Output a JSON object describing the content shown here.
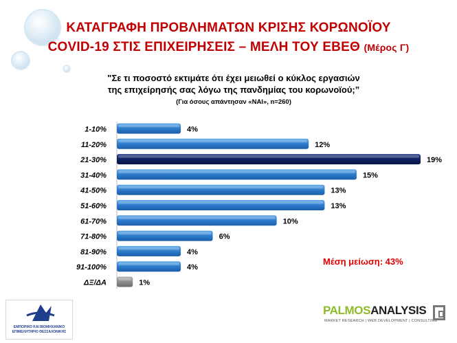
{
  "header": {
    "title_line1": "ΚΑΤΑΓΡΑΦΗ ΠΡΟΒΛΗΜΑΤΩΝ ΚΡΙΣΗΣ ΚΟΡΩΝΟΪΟΥ",
    "title_line2": "COVID-19 ΣΤΙΣ ΕΠΙΧΕΙΡΗΣΕΙΣ – ΜΕΛΗ ΤΟΥ ΕΒΕΘ",
    "title_part": "(Μέρος Γ)"
  },
  "question": {
    "line1": "\"Σε τι ποσοστό εκτιμάτε ότι έχει μειωθεί ο κύκλος εργασιών",
    "line2": "της επιχείρησής σας λόγω της πανδημίας του κορωνοϊού;”",
    "note": "(Για όσους απάντησαν «ΝΑΙ», n=260)"
  },
  "mean_label": "Μέση μείωση: 43%",
  "chart_data": {
    "type": "bar",
    "orientation": "horizontal",
    "categories": [
      "1-10%",
      "11-20%",
      "21-30%",
      "31-40%",
      "41-50%",
      "51-60%",
      "61-70%",
      "71-80%",
      "81-90%",
      "91-100%",
      "ΔΞ/ΔΑ"
    ],
    "values": [
      4,
      12,
      19,
      15,
      13,
      13,
      10,
      6,
      4,
      4,
      1
    ],
    "value_labels": [
      "4%",
      "12%",
      "19%",
      "15%",
      "13%",
      "13%",
      "10%",
      "6%",
      "4%",
      "4%",
      "1%"
    ],
    "xlim": [
      0,
      19
    ],
    "grid": false,
    "colors": {
      "default": "#2a78c8",
      "highlight": "#0c1f5e",
      "dk_na": "#8a8a8a"
    },
    "highlight_index": 2,
    "dk_na_index": 10
  },
  "logos": {
    "left_text": "ΕΜΠΟΡΙΚΟ ΚΑΙ ΒΙΟΜΗΧΑΝΙΚΟ ΕΠΙΜΕΛΗΤΗΡΙΟ ΘΕΣΣΑΛΟΝΙΚΗΣ",
    "right_brand_1": "PALMOS",
    "right_brand_2": "ANALYSIS",
    "right_tagline": "MARKET RESEARCH | WEB DEVELOPMENT | CONSULTING"
  }
}
